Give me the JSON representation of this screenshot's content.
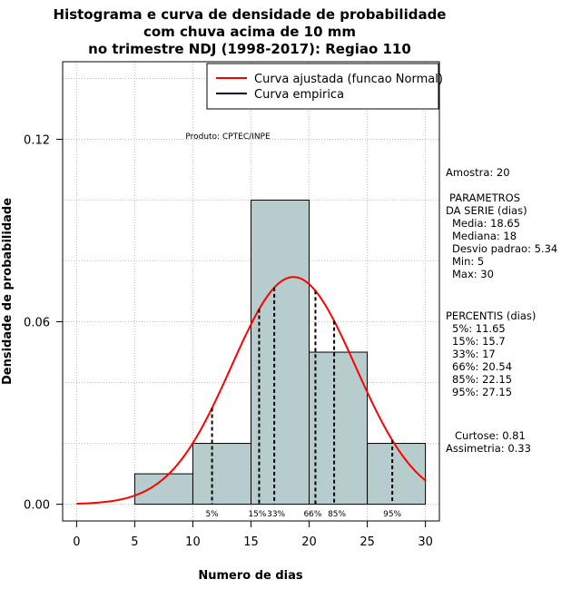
{
  "chart_data": {
    "type": "histogram",
    "title_lines": [
      "Histograma e curva de densidade de probabilidade",
      "com chuva acima de 10 mm",
      "no trimestre NDJ (1998-2017): Regiao 110"
    ],
    "xlabel": "Numero de dias",
    "ylabel": "Densidade de probabilidade",
    "xlim": [
      -1.2,
      31.2
    ],
    "ylim": [
      -0.0055,
      0.1455
    ],
    "x_ticks": [
      0,
      5,
      10,
      15,
      20,
      25,
      30
    ],
    "y_ticks": [
      0.0,
      0.06,
      0.12
    ],
    "y_tick_labels": [
      "0.00",
      "0.06",
      "0.12"
    ],
    "grid": true,
    "bins": [
      {
        "from": 5,
        "to": 10,
        "density": 0.01
      },
      {
        "from": 10,
        "to": 15,
        "density": 0.02
      },
      {
        "from": 15,
        "to": 20,
        "density": 0.1
      },
      {
        "from": 20,
        "to": 25,
        "density": 0.05
      },
      {
        "from": 25,
        "to": 30,
        "density": 0.02
      }
    ],
    "normal_fit": {
      "mean": 18.65,
      "sd": 5.34,
      "x_from": 0,
      "x_to": 30,
      "color": "#ff0000"
    },
    "percentile_lines": [
      {
        "label": "5%",
        "x": 11.65
      },
      {
        "label": "15%",
        "x": 15.7
      },
      {
        "label": "33%",
        "x": 17
      },
      {
        "label": "66%",
        "x": 20.54
      },
      {
        "label": "85%",
        "x": 22.15
      },
      {
        "label": "95%",
        "x": 27.15
      }
    ],
    "legend": {
      "position": "top-right",
      "entries": [
        {
          "label": "Curva ajustada (funcao Normal)",
          "color": "#ff0000"
        },
        {
          "label": "Curva empirica",
          "color": "#000000"
        }
      ]
    },
    "annotation": "Produto: CPTEC/INPE",
    "bar_color": "#b7cccc"
  },
  "stats_panel": {
    "sample": "Amostra: 20",
    "params_header_1": "PARAMETROS",
    "params_header_2": "DA SERIE (dias)",
    "params": [
      "Media: 18.65",
      "Mediana: 18",
      "Desvio padrao: 5.34",
      "Min: 5",
      "Max: 30"
    ],
    "percentiles_header": "PERCENTIS (dias)",
    "percentiles": [
      "5%: 11.65",
      "15%: 15.7",
      "33%: 17",
      "66%: 20.54",
      "85%: 22.15",
      "95%: 27.15"
    ],
    "kurtosis": "Curtose: 0.81",
    "skewness": "Assimetria: 0.33"
  }
}
